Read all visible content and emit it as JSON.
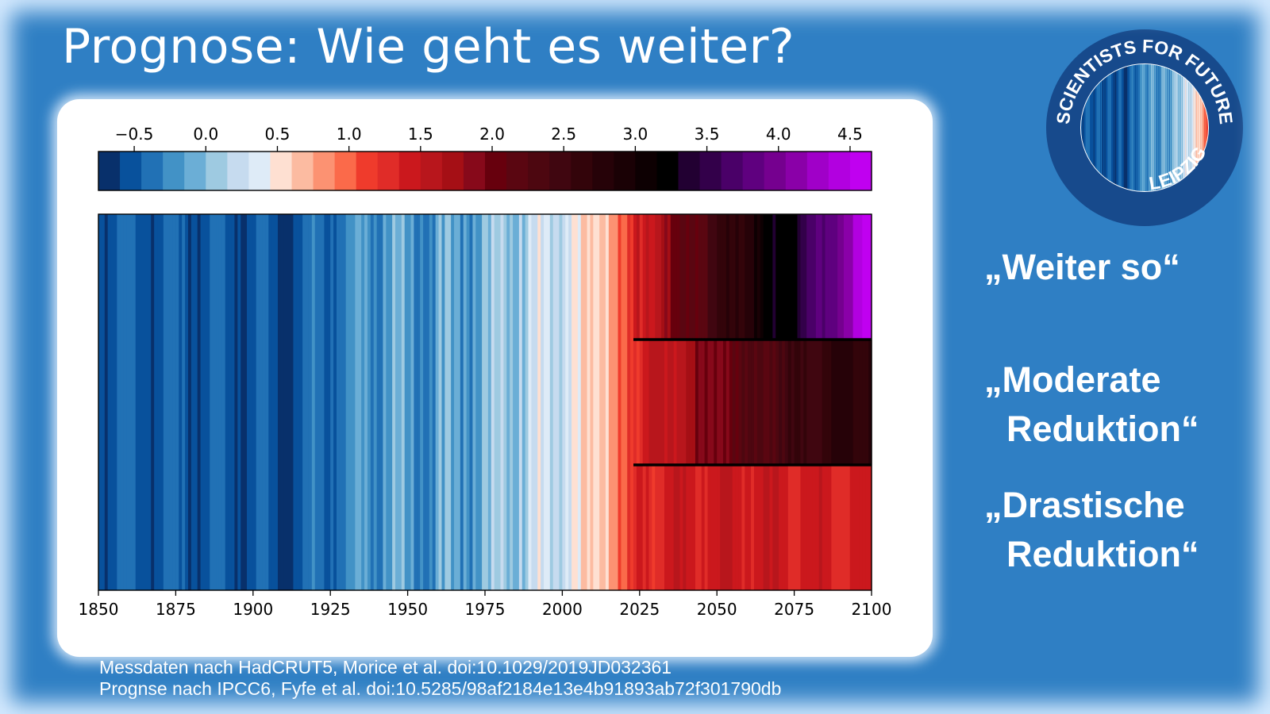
{
  "slide": {
    "title": "Prognose: Wie geht es weiter?"
  },
  "scenarios": [
    {
      "label": "„Weiter so“"
    },
    {
      "label_line1": "„Moderate",
      "label_line2": "Reduktion“"
    },
    {
      "label_line1": "„Drastische",
      "label_line2": "Reduktion“"
    }
  ],
  "footer": {
    "line1": "Messdaten nach HadCRUT5, Morice et al. doi:10.1029/2019JD032361",
    "line2": "Prognse nach IPCC6, Fyfe et al. doi:10.5285/98af2184e13e4b91893ab72f301790db"
  },
  "logo": {
    "text_top": "SCIENTISTS FOR FUTURE",
    "text_bottom": "LEIPZIG",
    "ring_color": "#174a8c"
  },
  "colors": {
    "background": "#2f7fc4",
    "scale": [
      "#08306b",
      "#08519c",
      "#2171b5",
      "#4292c6",
      "#6baed6",
      "#9ecae1",
      "#c6dbef",
      "#deebf7",
      "#fee0d2",
      "#fcbba1",
      "#fc9272",
      "#fb6a4a",
      "#ef3b2c",
      "#e02c28",
      "#cb181d",
      "#b8161c",
      "#a50f15",
      "#87091a",
      "#67000d",
      "#5a0611",
      "#4d0710",
      "#400610",
      "#33040a",
      "#260208",
      "#1a0105",
      "#0d0002",
      "#000000",
      "#220032",
      "#33004a",
      "#4a0068",
      "#5f007f",
      "#75008f",
      "#8a00a8",
      "#a000c8",
      "#b200e0",
      "#c000f0"
    ]
  },
  "chart_data": {
    "type": "heatmap",
    "description_type": "warming stripes",
    "colorbar": {
      "range": [
        -0.75,
        4.65
      ],
      "ticks": [
        "−0.5",
        "0.0",
        "0.5",
        "1.0",
        "1.5",
        "2.0",
        "2.5",
        "3.0",
        "3.5",
        "4.0",
        "4.5"
      ],
      "tick_values": [
        -0.5,
        0.0,
        0.5,
        1.0,
        1.5,
        2.0,
        2.5,
        3.0,
        3.5,
        4.0,
        4.5
      ]
    },
    "x_axis": {
      "range": [
        1850,
        2100
      ],
      "ticks": [
        "1850",
        "1875",
        "1900",
        "1925",
        "1950",
        "1975",
        "2000",
        "2025",
        "2050",
        "2075",
        "2100"
      ],
      "tick_values": [
        1850,
        1875,
        1900,
        1925,
        1950,
        1975,
        2000,
        2025,
        2050,
        2075,
        2100
      ]
    },
    "observed": {
      "source": "HadCRUT5",
      "start_year": 1850,
      "end_year": 2023,
      "anchors": [
        [
          1850,
          -0.45
        ],
        [
          1860,
          -0.48
        ],
        [
          1870,
          -0.46
        ],
        [
          1880,
          -0.47
        ],
        [
          1890,
          -0.52
        ],
        [
          1900,
          -0.48
        ],
        [
          1910,
          -0.58
        ],
        [
          1920,
          -0.42
        ],
        [
          1930,
          -0.32
        ],
        [
          1940,
          -0.15
        ],
        [
          1945,
          -0.1
        ],
        [
          1950,
          -0.25
        ],
        [
          1960,
          -0.15
        ],
        [
          1970,
          -0.12
        ],
        [
          1980,
          0.05
        ],
        [
          1990,
          0.18
        ],
        [
          2000,
          0.32
        ],
        [
          2010,
          0.55
        ],
        [
          2016,
          0.9
        ],
        [
          2023,
          1.1
        ]
      ]
    },
    "scenarios": [
      {
        "name": "Weiter so",
        "start_year": 2023,
        "end_year": 2100,
        "anchors": [
          [
            2023,
            1.3
          ],
          [
            2040,
            2.1
          ],
          [
            2060,
            2.9
          ],
          [
            2077,
            3.45
          ],
          [
            2085,
            3.8
          ],
          [
            2100,
            4.55
          ]
        ]
      },
      {
        "name": "Moderate Reduktion",
        "start_year": 2023,
        "end_year": 2100,
        "anchors": [
          [
            2023,
            1.3
          ],
          [
            2040,
            1.75
          ],
          [
            2060,
            2.2
          ],
          [
            2080,
            2.6
          ],
          [
            2100,
            2.8
          ]
        ]
      },
      {
        "name": "Drastische Reduktion",
        "start_year": 2023,
        "end_year": 2100,
        "anchors": [
          [
            2023,
            1.3
          ],
          [
            2040,
            1.45
          ],
          [
            2060,
            1.45
          ],
          [
            2080,
            1.38
          ],
          [
            2100,
            1.35
          ]
        ]
      }
    ]
  }
}
